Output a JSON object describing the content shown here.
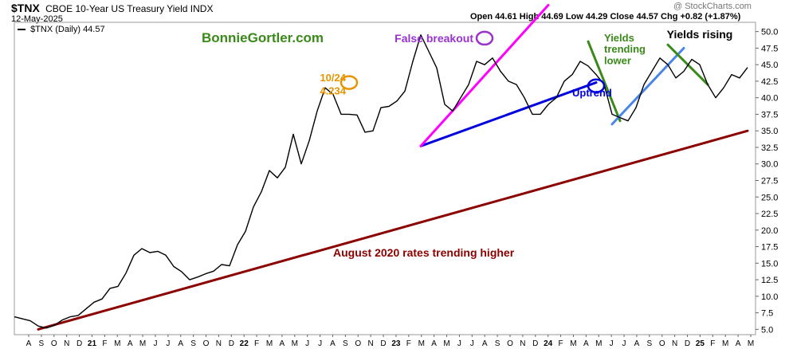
{
  "header": {
    "symbol": "$TNX",
    "name": "CBOE 10-Year US Treasury Yield INDX",
    "date": "12-May-2025",
    "ohlc_text": "Open 44.61  High 44.69  Low 44.29  Close 44.57  Chg +0.82 (+1.87%)",
    "brand": "@ StockCharts.com"
  },
  "legend": {
    "text": "$TNX (Daily) 44.57"
  },
  "watermark": "BonnieGortler.com",
  "colors": {
    "price": "#000000",
    "longtrend": "#8b0000",
    "uptrend": "#0000dd",
    "magenta": "#ff00ff",
    "green": "#3a8a1a",
    "lightblue": "#4a86e8",
    "orange": "#e69500",
    "purple": "#9933cc",
    "watermark": "#3a8a1a"
  },
  "chart_data": {
    "type": "line",
    "title": "$TNX CBOE 10-Year US Treasury Yield INDX",
    "series": [
      {
        "name": "$TNX (Daily)",
        "points": [
          [
            0,
            6.9
          ],
          [
            2,
            6.3
          ],
          [
            3,
            5.5
          ],
          [
            4,
            5.2
          ],
          [
            5,
            5.6
          ],
          [
            6,
            6.4
          ],
          [
            7,
            6.9
          ],
          [
            8,
            7.1
          ],
          [
            9,
            8.1
          ],
          [
            10,
            9.1
          ],
          [
            11,
            9.6
          ],
          [
            12,
            11.2
          ],
          [
            13,
            11.5
          ],
          [
            14,
            13.5
          ],
          [
            15,
            16.2
          ],
          [
            16,
            17.2
          ],
          [
            17,
            16.6
          ],
          [
            18,
            16.8
          ],
          [
            19,
            16.2
          ],
          [
            20,
            14.5
          ],
          [
            21,
            13.7
          ],
          [
            22,
            12.5
          ],
          [
            23,
            12.9
          ],
          [
            24,
            13.4
          ],
          [
            25,
            13.8
          ],
          [
            26,
            14.8
          ],
          [
            27,
            14.6
          ],
          [
            28,
            17.8
          ],
          [
            29,
            19.8
          ],
          [
            30,
            23.5
          ],
          [
            31,
            25.8
          ],
          [
            32,
            29.0
          ],
          [
            33,
            27.9
          ],
          [
            34,
            29.5
          ],
          [
            35,
            34.5
          ],
          [
            36,
            30.0
          ],
          [
            37,
            33.5
          ],
          [
            38,
            38.0
          ],
          [
            39,
            41.5
          ],
          [
            40,
            40.5
          ],
          [
            41,
            37.5
          ],
          [
            42,
            37.5
          ],
          [
            43,
            37.4
          ],
          [
            44,
            34.8
          ],
          [
            45,
            35.0
          ],
          [
            46,
            38.5
          ],
          [
            47,
            38.7
          ],
          [
            48,
            39.5
          ],
          [
            49,
            41.0
          ],
          [
            50,
            45.5
          ],
          [
            51,
            49.5
          ],
          [
            52,
            47.0
          ],
          [
            53,
            44.5
          ],
          [
            54,
            39.0
          ],
          [
            55,
            38.0
          ],
          [
            56,
            40.0
          ],
          [
            57,
            42.0
          ],
          [
            58,
            45.5
          ],
          [
            59,
            45.0
          ],
          [
            60,
            46.0
          ],
          [
            61,
            44.0
          ],
          [
            62,
            42.5
          ],
          [
            63,
            42.0
          ],
          [
            64,
            40.0
          ],
          [
            65,
            37.5
          ],
          [
            66,
            37.5
          ],
          [
            67,
            39.0
          ],
          [
            68,
            40.0
          ],
          [
            69,
            42.5
          ],
          [
            70,
            43.5
          ],
          [
            71,
            45.5
          ],
          [
            72,
            44.8
          ],
          [
            73,
            43.5
          ],
          [
            74,
            42.0
          ],
          [
            75,
            37.5
          ],
          [
            76,
            37.0
          ],
          [
            77,
            36.5
          ],
          [
            78,
            38.5
          ],
          [
            79,
            42.0
          ],
          [
            80,
            44.0
          ],
          [
            81,
            46.0
          ],
          [
            82,
            45.0
          ],
          [
            83,
            43.0
          ],
          [
            84,
            44.0
          ],
          [
            85,
            45.8
          ],
          [
            86,
            45.0
          ],
          [
            87,
            42.0
          ],
          [
            88,
            40.0
          ],
          [
            89,
            41.5
          ],
          [
            90,
            43.5
          ],
          [
            91,
            43.0
          ],
          [
            92,
            44.57
          ]
        ]
      }
    ],
    "x_ticks": [
      "A",
      "S",
      "O",
      "N",
      "D",
      "21",
      "F",
      "M",
      "A",
      "M",
      "J",
      "J",
      "A",
      "S",
      "O",
      "N",
      "D",
      "22",
      "F",
      "M",
      "A",
      "M",
      "J",
      "J",
      "A",
      "S",
      "O",
      "N",
      "D",
      "23",
      "F",
      "M",
      "A",
      "M",
      "J",
      "J",
      "A",
      "S",
      "O",
      "N",
      "D",
      "24",
      "F",
      "M",
      "A",
      "M",
      "J",
      "J",
      "A",
      "S",
      "O",
      "N",
      "D",
      "25",
      "F",
      "M",
      "A",
      "M"
    ],
    "y_ticks": [
      5.0,
      7.5,
      10.0,
      12.5,
      15.0,
      17.5,
      20.0,
      22.5,
      25.0,
      27.5,
      30.0,
      32.5,
      35.0,
      37.5,
      40.0,
      42.5,
      45.0,
      47.5,
      50.0
    ],
    "ylim": [
      4.2,
      51.4
    ],
    "trendlines": [
      {
        "label": "August 2020 rates trending higher",
        "from": [
          3,
          5.0
        ],
        "to": [
          92,
          35.0
        ],
        "color": "#8b0000"
      },
      {
        "label": "Uptrend",
        "from": [
          51,
          32.7
        ],
        "to": [
          73,
          42.3
        ],
        "color": "#0000dd"
      },
      {
        "label": "",
        "from": [
          51,
          32.7
        ],
        "to": [
          67,
          54.0
        ],
        "color": "#ff00ff"
      },
      {
        "label": "Yields trending lower",
        "from": [
          72,
          48.5
        ],
        "to": [
          76,
          36.5
        ],
        "color": "#3a8a1a"
      },
      {
        "label": "",
        "from": [
          75,
          36.0
        ],
        "to": [
          84,
          47.5
        ],
        "color": "#4a86e8"
      },
      {
        "label": "Yields rising",
        "from": [
          82,
          48.0
        ],
        "to": [
          87,
          42.0
        ],
        "color": "#3a8a1a"
      }
    ],
    "annotations": [
      {
        "text": "False breakout",
        "at": [
          59,
          49.0
        ],
        "color": "#9933cc"
      },
      {
        "text": "10/24",
        "at": [
          42,
          42.5
        ],
        "color": "#e69500"
      },
      {
        "text": "4.234",
        "at": [
          42,
          40.5
        ],
        "color": "#e69500"
      },
      {
        "text": "Uptrend",
        "at": [
          70,
          40.2
        ],
        "color": "#0000dd"
      },
      {
        "text": "Yields",
        "at": [
          74,
          48.5
        ],
        "color": "#3a8a1a"
      },
      {
        "text": "trending",
        "at": [
          74,
          46.8
        ],
        "color": "#3a8a1a"
      },
      {
        "text": "lower",
        "at": [
          74,
          45.1
        ],
        "color": "#3a8a1a"
      },
      {
        "text": "Yields rising",
        "at": [
          86,
          49.0
        ],
        "color": "#000000"
      },
      {
        "text": "August 2020 rates trending higher",
        "at": [
          40,
          16.0
        ],
        "color": "#8b0000"
      }
    ],
    "circles": [
      {
        "at": [
          59,
          49.0
        ],
        "color": "#9933cc"
      },
      {
        "at": [
          42,
          42.3
        ],
        "color": "#e69500"
      },
      {
        "at": [
          73,
          41.8
        ],
        "color": "#0000dd"
      }
    ],
    "grid": false,
    "legend": "top-left"
  }
}
